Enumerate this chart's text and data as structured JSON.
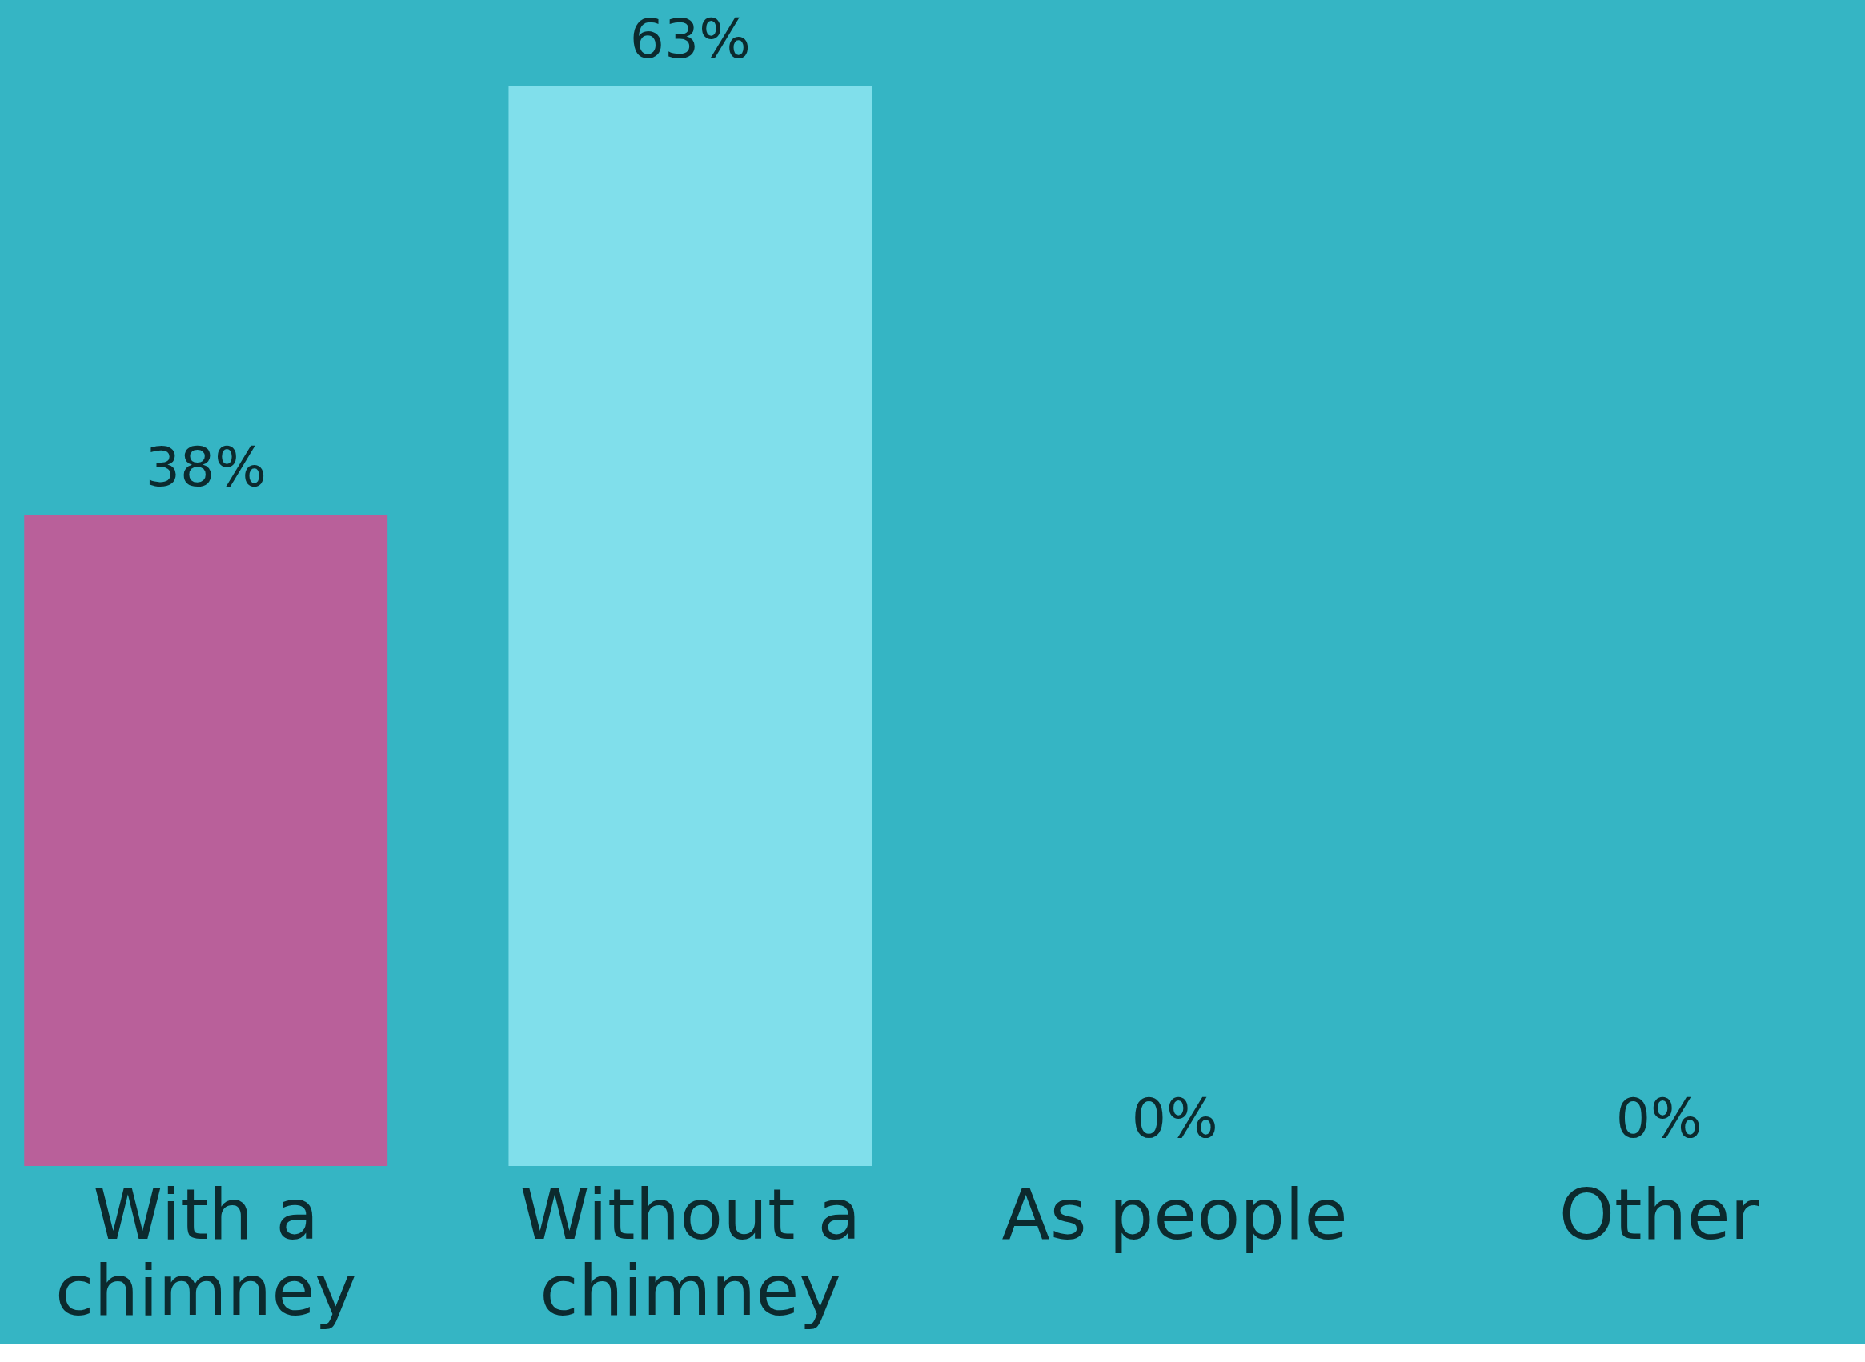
{
  "chart_data": {
    "type": "bar",
    "categories": [
      "With a chimney",
      "Without a chimney",
      "As people",
      "Other"
    ],
    "values": [
      38,
      63,
      0,
      0
    ],
    "colors": [
      "#b9609a",
      "#80dfeb",
      "#80dfeb",
      "#80dfeb"
    ],
    "value_labels": [
      "38%",
      "63%",
      "0%",
      "0%"
    ],
    "grid": false
  }
}
